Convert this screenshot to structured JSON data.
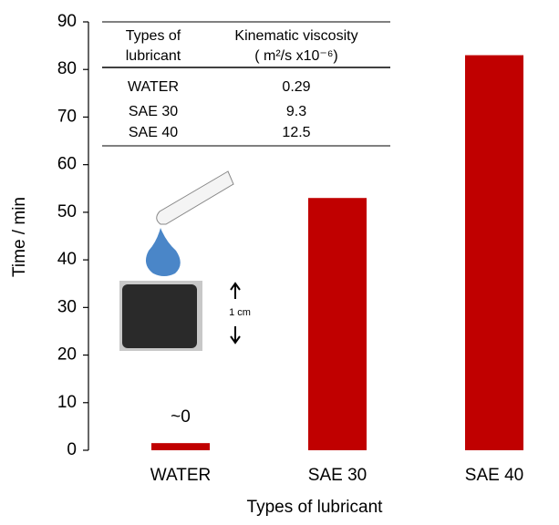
{
  "chart_data": {
    "type": "bar",
    "x_label": "Types of lubricant",
    "y_label": "Time / min",
    "categories": [
      "WATER",
      "SAE 30",
      "SAE 40"
    ],
    "values": [
      1.5,
      53,
      83
    ],
    "color": "#c00000",
    "annotations": [
      {
        "text": "~0",
        "category": 0
      }
    ],
    "ylim": [
      0,
      90
    ],
    "yticks": [
      0,
      10,
      20,
      30,
      40,
      50,
      60,
      70,
      80,
      90
    ],
    "grid": false
  },
  "inset_table": {
    "header": [
      [
        "Types of",
        "lubricant"
      ],
      [
        "Kinematic viscosity",
        "( m²/s x10⁻⁶)"
      ]
    ],
    "rows": [
      [
        "WATER",
        0.29
      ],
      [
        "SAE 30",
        9.3
      ],
      [
        "SAE 40",
        12.5
      ]
    ]
  },
  "scale_label": "1 cm"
}
